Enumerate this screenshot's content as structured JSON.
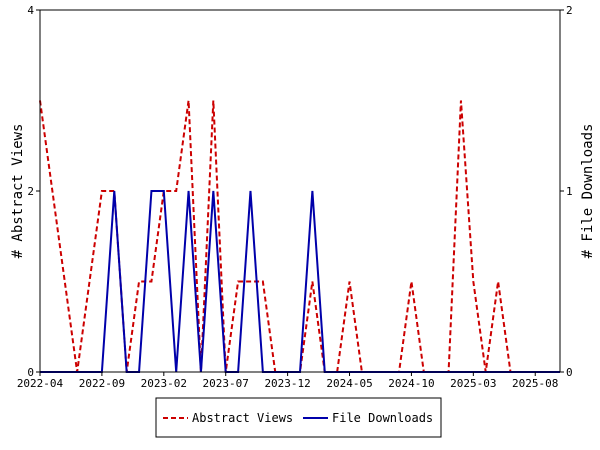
{
  "chart_data": {
    "type": "line",
    "x": [
      "2022-04",
      "2022-05",
      "2022-06",
      "2022-07",
      "2022-08",
      "2022-09",
      "2022-10",
      "2022-11",
      "2022-12",
      "2023-01",
      "2023-02",
      "2023-03",
      "2023-04",
      "2023-05",
      "2023-06",
      "2023-07",
      "2023-08",
      "2023-09",
      "2023-10",
      "2023-11",
      "2023-12",
      "2024-01",
      "2024-02",
      "2024-03",
      "2024-04",
      "2024-05",
      "2024-06",
      "2024-07",
      "2024-08",
      "2024-09",
      "2024-10",
      "2024-11",
      "2024-12",
      "2025-01",
      "2025-02",
      "2025-03",
      "2025-04",
      "2025-05",
      "2025-06",
      "2025-07",
      "2025-08",
      "2025-09",
      "2025-10"
    ],
    "x_tick_labels": [
      "2022-04",
      "2022-09",
      "2023-02",
      "2023-07",
      "2023-12",
      "2024-05",
      "2024-10",
      "2025-03",
      "2025-08"
    ],
    "y_left_label": "# Abstract Views",
    "y_right_label": "# File Downloads",
    "y_left_ticks": [
      "0",
      "2",
      "4"
    ],
    "y_right_ticks": [
      "0",
      "1",
      "2"
    ],
    "y_left_range": [
      0,
      4
    ],
    "y_right_range": [
      0,
      2
    ],
    "series": [
      {
        "name": "Abstract Views",
        "axis": "left",
        "color": "#cc0000",
        "style": "dashed",
        "values": [
          3,
          2,
          1,
          0,
          1,
          2,
          2,
          0,
          1,
          1,
          2,
          2,
          3,
          0,
          3,
          0,
          1,
          1,
          1,
          0,
          0,
          0,
          1,
          0,
          0,
          1,
          0,
          0,
          0,
          0,
          1,
          0,
          0,
          0,
          3,
          1,
          0,
          1,
          0,
          0,
          0,
          0,
          0
        ]
      },
      {
        "name": "File Downloads",
        "axis": "right",
        "color": "#0000aa",
        "style": "solid",
        "values": [
          0,
          0,
          0,
          0,
          0,
          0,
          1,
          0,
          0,
          1,
          1,
          0,
          1,
          0,
          1,
          0,
          0,
          1,
          0,
          0,
          0,
          0,
          1,
          0,
          0,
          0,
          0,
          0,
          0,
          0,
          0,
          0,
          0,
          0,
          0,
          0,
          0,
          0,
          0,
          0,
          0,
          0,
          0
        ]
      }
    ],
    "legend_position": "bottom",
    "grid": false
  }
}
